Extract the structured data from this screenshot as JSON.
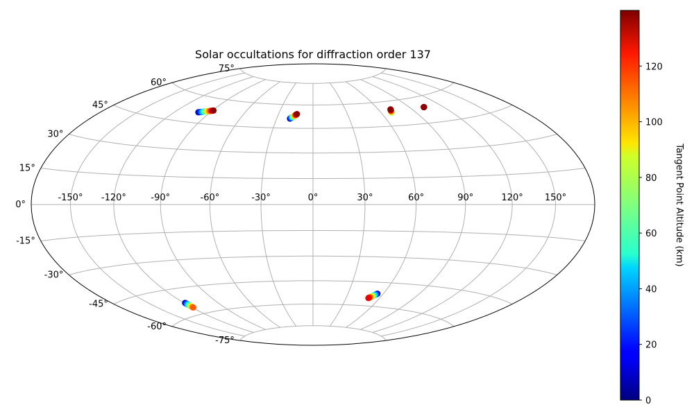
{
  "chart_data": {
    "type": "scatter",
    "title": "Solar occultations for diffraction order 137",
    "projection": "hammer",
    "x_tick_labels": [
      "-150°",
      "-120°",
      "-90°",
      "-60°",
      "-30°",
      "0°",
      "30°",
      "60°",
      "90°",
      "120°",
      "150°"
    ],
    "x_ticks_deg": [
      -150,
      -120,
      -90,
      -60,
      -30,
      0,
      30,
      60,
      90,
      120,
      150
    ],
    "y_tick_labels": [
      "-75°",
      "-60°",
      "-45°",
      "-30°",
      "-15°",
      "0°",
      "15°",
      "30°",
      "45°",
      "60°",
      "75°"
    ],
    "y_ticks_deg": [
      -75,
      -60,
      -45,
      -30,
      -15,
      0,
      15,
      30,
      45,
      60,
      75
    ],
    "grid": true,
    "colormap": "jet",
    "colorbar": {
      "label": "Tangent Point Altitude (km)",
      "range": [
        0,
        140
      ],
      "tick_values": [
        0,
        20,
        40,
        60,
        80,
        100,
        120
      ],
      "tick_labels": [
        "0",
        "20",
        "40",
        "60",
        "80",
        "100",
        "120"
      ],
      "placement": "right"
    },
    "tracks": [
      {
        "lon_start": -100,
        "lat_start": 51,
        "lon_end": -89,
        "lat_end": 53,
        "alt_start": 5,
        "alt_end": 138
      },
      {
        "lon_start": -19,
        "lat_start": 51,
        "lon_end": -14,
        "lat_end": 54,
        "alt_start": 5,
        "alt_end": 138
      },
      {
        "lon_start": 69,
        "lat_start": 53,
        "lon_end": 71,
        "lat_end": 55,
        "alt_start": 70,
        "alt_end": 138
      },
      {
        "lon_start": 103,
        "lat_start": 54,
        "lon_end": 103,
        "lat_end": 54,
        "alt_start": 138,
        "alt_end": 138
      },
      {
        "lon_start": -119,
        "lat_start": -53,
        "lon_end": -119,
        "lat_end": -56,
        "alt_start": 5,
        "alt_end": 110
      },
      {
        "lon_start": 55,
        "lat_start": -52,
        "lon_end": 50,
        "lat_end": -55,
        "alt_start": 5,
        "alt_end": 125
      }
    ]
  }
}
